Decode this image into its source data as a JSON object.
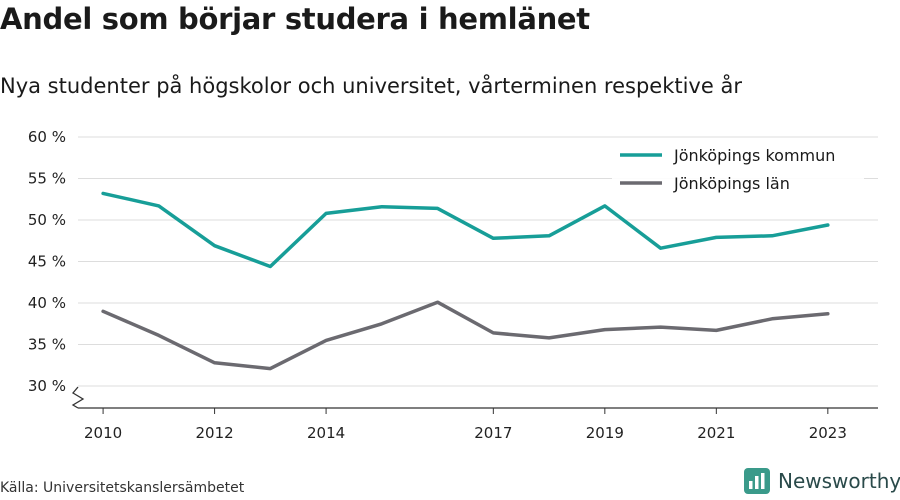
{
  "title": "Andel som börjar studera i hemlänet",
  "subtitle": "Nya studenter på högskolor och universitet, vårterminen respektive år",
  "source": "Källa: Universitetskanslersämbetet",
  "brand": {
    "name": "Newsworthy",
    "logo_icon": "bar-chart-icon",
    "color": "#3a9a8a"
  },
  "colors": {
    "grid": "#dddddd",
    "axis": "#333333"
  },
  "chart_data": {
    "type": "line",
    "x": [
      2010,
      2011,
      2012,
      2013,
      2014,
      2015,
      2016,
      2017,
      2018,
      2019,
      2020,
      2021,
      2022,
      2023
    ],
    "x_tick_values": [
      2010,
      2012,
      2014,
      2017,
      2019,
      2021,
      2023
    ],
    "x_tick_labels": [
      "2010",
      "2012",
      "2014",
      "2017",
      "2019",
      "2021",
      "2023"
    ],
    "y_tick_values": [
      30,
      35,
      40,
      45,
      50,
      55,
      60
    ],
    "y_tick_labels": [
      "30 %",
      "35 %",
      "40 %",
      "45 %",
      "50 %",
      "55 %",
      "60 %"
    ],
    "ylim": [
      30,
      60
    ],
    "y_axis_break": true,
    "grid": true,
    "legend_position": "top-right",
    "series": [
      {
        "name": "Jönköpings kommun",
        "color": "#179e98",
        "values": [
          53.2,
          51.7,
          46.9,
          44.4,
          50.8,
          51.6,
          51.4,
          47.8,
          48.1,
          51.7,
          46.6,
          47.9,
          48.1,
          49.4
        ]
      },
      {
        "name": "Jönköpings län",
        "color": "#6b6a70",
        "values": [
          39.0,
          36.1,
          32.8,
          32.1,
          35.5,
          37.5,
          40.1,
          36.4,
          35.8,
          36.8,
          37.1,
          36.7,
          38.1,
          38.7
        ]
      }
    ]
  }
}
